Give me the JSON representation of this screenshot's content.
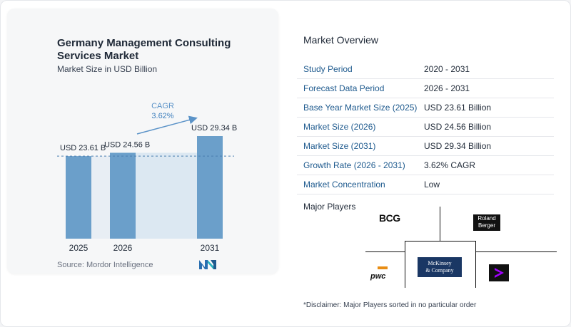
{
  "chart_data": {
    "type": "bar",
    "title": "Germany Management Consulting Services Market",
    "subtitle": "Market Size in USD Billion",
    "categories": [
      "2025",
      "2026",
      "2031"
    ],
    "values": [
      23.61,
      24.56,
      29.34
    ],
    "value_labels": [
      "USD 23.61 B",
      "USD 24.56 B",
      "USD 29.34 B"
    ],
    "cagr_label": "CAGR",
    "cagr_value": "3.62%",
    "bar_color": "#6b9fca",
    "band_color": "#dce8f2",
    "arrow_color": "#5b93c8",
    "grid": false
  },
  "source": "Source:  Mordor Intelligence",
  "overview": {
    "heading": "Market Overview",
    "rows": [
      {
        "label": "Study Period",
        "value": "2020 - 2031"
      },
      {
        "label": "Forecast Data Period",
        "value": "2026 - 2031"
      },
      {
        "label": "Base Year Market Size (2025)",
        "value": "USD 23.61 Billion"
      },
      {
        "label": "Market Size (2026)",
        "value": "USD 24.56 Billion"
      },
      {
        "label": "Market Size (2031)",
        "value": "USD 29.34 Billion"
      },
      {
        "label": "Growth Rate (2026 - 2031)",
        "value": "3.62% CAGR"
      },
      {
        "label": "Market Concentration",
        "value": "Low"
      }
    ]
  },
  "players": {
    "heading": "Major Players",
    "logos": {
      "bcg": "BCG",
      "roland_top": "Roland",
      "roland_bottom": "Berger",
      "pwc": "pwc",
      "mckinsey_top": "McKinsey",
      "mckinsey_bottom": "& Company"
    }
  },
  "disclaimer": "*Disclaimer: Major Players sorted in no particular order"
}
